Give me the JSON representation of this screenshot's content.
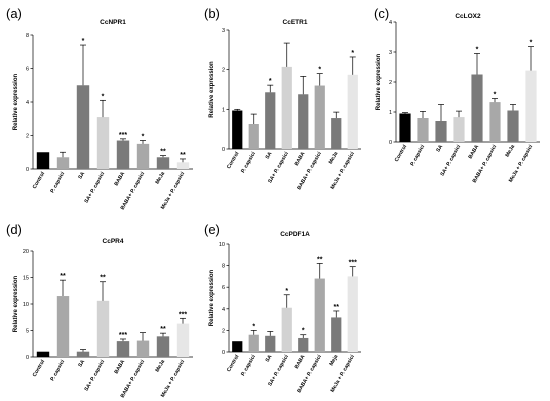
{
  "colors": {
    "black": "#000000",
    "dark_gray": "#7a7a7a",
    "gray": "#a8a8a8",
    "light_gray": "#d2d2d2",
    "lightest_gray": "#e6e6e6"
  },
  "chart_data": [
    {
      "type": "bar",
      "panel_letter": "(a)",
      "title": "CcNPR1",
      "ylabel": "Relative expression",
      "ylim": [
        0,
        8
      ],
      "yticks": [
        0,
        2,
        4,
        6,
        8
      ],
      "categories": [
        "Control",
        "P. capsici",
        "SA",
        "SA+ P. capsici",
        "BABA",
        "BABA+ P. capsici",
        "MeJa",
        "MeJa + P. capsici"
      ],
      "values": [
        1.0,
        0.7,
        5.0,
        3.1,
        1.7,
        1.5,
        0.7,
        0.4
      ],
      "errors": [
        0.0,
        0.3,
        2.4,
        1.0,
        0.1,
        0.2,
        0.1,
        0.2
      ],
      "significance": [
        "",
        "",
        "*",
        "*",
        "***",
        "*",
        "**",
        "**"
      ],
      "bar_colors": [
        "#000000",
        "#a8a8a8",
        "#7a7a7a",
        "#d2d2d2",
        "#7a7a7a",
        "#a8a8a8",
        "#7a7a7a",
        "#e6e6e6"
      ]
    },
    {
      "type": "bar",
      "panel_letter": "(b)",
      "title": "CcETR1",
      "ylabel": "Relative expression",
      "ylim": [
        0,
        3
      ],
      "yticks": [
        0,
        1,
        2,
        3
      ],
      "categories": [
        "Control",
        "P. capsici",
        "SA",
        "SA+ P. capsici",
        "BABA",
        "BABA+ P. capsici",
        "MeJa",
        "MeJa + P. capsici"
      ],
      "values": [
        0.97,
        0.63,
        1.43,
        2.07,
        1.38,
        1.6,
        0.78,
        1.87
      ],
      "errors": [
        0.03,
        0.25,
        0.18,
        0.6,
        0.45,
        0.3,
        0.15,
        0.45
      ],
      "significance": [
        "",
        "",
        "*",
        "",
        "",
        "*",
        "",
        "*"
      ],
      "bar_colors": [
        "#000000",
        "#a8a8a8",
        "#7a7a7a",
        "#d2d2d2",
        "#7a7a7a",
        "#a8a8a8",
        "#7a7a7a",
        "#e6e6e6"
      ]
    },
    {
      "type": "bar",
      "panel_letter": "(c)",
      "title": "CcLOX2",
      "ylabel": "Relative expression",
      "ylim": [
        0,
        4
      ],
      "yticks": [
        0,
        1,
        2,
        3,
        4
      ],
      "categories": [
        "Control",
        "P. capsici",
        "SA",
        "SA+ P. capsici",
        "BABA",
        "BABA+ P. capsici",
        "MeJa",
        "MeJa + P. capsici"
      ],
      "values": [
        0.95,
        0.8,
        0.7,
        0.83,
        2.25,
        1.33,
        1.05,
        2.38
      ],
      "errors": [
        0.03,
        0.22,
        0.55,
        0.2,
        0.7,
        0.12,
        0.2,
        0.8
      ],
      "significance": [
        "",
        "",
        "",
        "",
        "*",
        "*",
        "",
        "*"
      ],
      "bar_colors": [
        "#000000",
        "#a8a8a8",
        "#7a7a7a",
        "#d2d2d2",
        "#7a7a7a",
        "#a8a8a8",
        "#7a7a7a",
        "#e6e6e6"
      ]
    },
    {
      "type": "bar",
      "panel_letter": "(d)",
      "title": "CcPR4",
      "ylabel": "Relative expression",
      "ylim": [
        0,
        20
      ],
      "yticks": [
        0,
        5,
        10,
        15,
        20
      ],
      "categories": [
        "Control",
        "P. capsici",
        "SA",
        "SA+ P. capsici",
        "BABA",
        "BABA+ P. capsici",
        "MeJa",
        "MeJa + P. capsici"
      ],
      "values": [
        1.0,
        11.5,
        1.0,
        10.6,
        3.0,
        3.1,
        3.9,
        6.3
      ],
      "errors": [
        0.0,
        3.0,
        0.4,
        3.6,
        0.4,
        1.5,
        0.6,
        1.0
      ],
      "significance": [
        "",
        "**",
        "",
        "**",
        "***",
        "",
        "**",
        "***"
      ],
      "bar_colors": [
        "#000000",
        "#a8a8a8",
        "#7a7a7a",
        "#d2d2d2",
        "#7a7a7a",
        "#a8a8a8",
        "#7a7a7a",
        "#e6e6e6"
      ]
    },
    {
      "type": "bar",
      "panel_letter": "(e)",
      "title": "CcPDF1A",
      "ylabel": "Relative expression",
      "ylim": [
        0,
        10
      ],
      "yticks": [
        0,
        2,
        4,
        6,
        8,
        10
      ],
      "categories": [
        "Control",
        "P. capsici",
        "SA",
        "SA+ P. capsici",
        "BABA",
        "BABA+ P. capsici",
        "Meja",
        "MeJa + P. capsici"
      ],
      "values": [
        1.0,
        1.6,
        1.5,
        4.1,
        1.3,
        6.8,
        3.2,
        7.0
      ],
      "errors": [
        0.0,
        0.4,
        0.4,
        1.2,
        0.3,
        1.4,
        0.6,
        0.9
      ],
      "significance": [
        "",
        "*",
        "",
        "*",
        "*",
        "**",
        "**",
        "***"
      ],
      "bar_colors": [
        "#000000",
        "#a8a8a8",
        "#7a7a7a",
        "#d2d2d2",
        "#7a7a7a",
        "#a8a8a8",
        "#7a7a7a",
        "#e6e6e6"
      ]
    }
  ]
}
